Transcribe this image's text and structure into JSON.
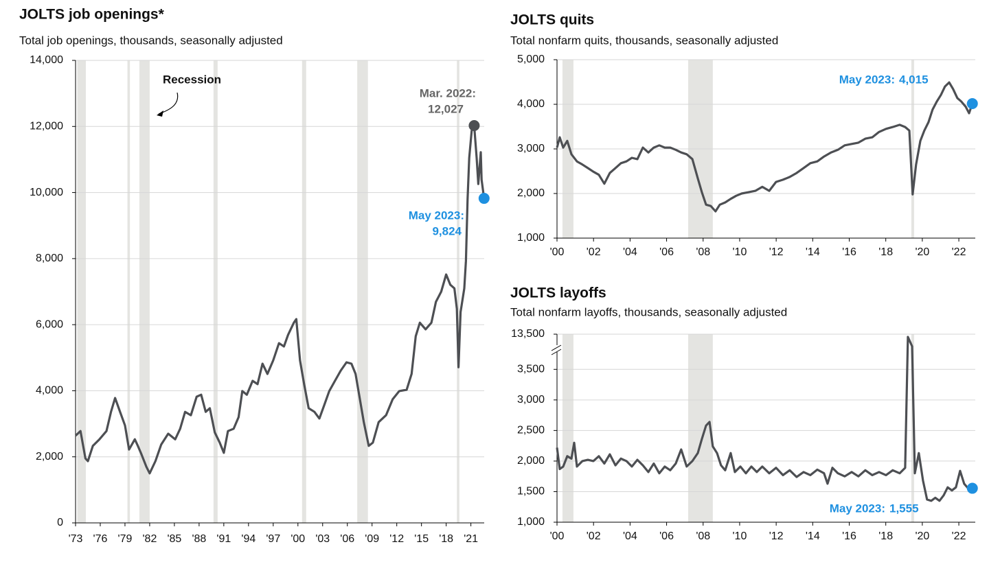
{
  "chart_data": [
    {
      "type": "line",
      "title": "JOLTS job openings*",
      "subtitle": "Total job openings, thousands, seasonally adjusted",
      "color": "#4d4f53",
      "grid": true,
      "recession_color": "#e4e4e1",
      "recession_label": "Recession",
      "x": [
        1973,
        1973.6,
        1974.2,
        1974.5,
        1975.1,
        1975.9,
        1976.75,
        1977.3,
        1977.8,
        1978.4,
        1979,
        1979.5,
        1980.2,
        1980.5,
        1981,
        1981.6,
        1982,
        1982.7,
        1983.4,
        1984.25,
        1985.1,
        1985.7,
        1986.3,
        1987,
        1987.7,
        1988.25,
        1988.8,
        1989.3,
        1989.9,
        1990.5,
        1991,
        1991.5,
        1992.2,
        1992.8,
        1993.25,
        1993.8,
        1994.5,
        1995.1,
        1995.7,
        1996.3,
        1997,
        1997.7,
        1998.3,
        1998.8,
        1999.5,
        1999.8,
        2000.25,
        2000.75,
        2001.3,
        2002,
        2002.6,
        2003.2,
        2003.8,
        2004.5,
        2005.2,
        2005.9,
        2006.5,
        2007,
        2007.5,
        2008,
        2008.6,
        2009.1,
        2009.8,
        2010.7,
        2011.5,
        2012.3,
        2013.2,
        2013.8,
        2014.3,
        2014.8,
        2015.5,
        2016.2,
        2016.75,
        2017.4,
        2018,
        2018.5,
        2019,
        2019.3,
        2019.5,
        2019.75,
        2020.2,
        2020.4,
        2020.6,
        2020.8,
        2021.1,
        2021.4,
        2021.7,
        2021.9,
        2022.2,
        2022.3,
        2022.6
      ],
      "values": [
        2640,
        2780,
        1950,
        1870,
        2330,
        2530,
        2780,
        3360,
        3780,
        3360,
        2950,
        2220,
        2530,
        2370,
        2080,
        1700,
        1500,
        1870,
        2370,
        2700,
        2530,
        2850,
        3360,
        3260,
        3820,
        3880,
        3360,
        3470,
        2740,
        2430,
        2120,
        2780,
        2850,
        3200,
        3990,
        3880,
        4300,
        4200,
        4820,
        4510,
        4920,
        5440,
        5340,
        5690,
        6060,
        6170,
        4920,
        4200,
        3470,
        3360,
        3160,
        3570,
        3990,
        4300,
        4610,
        4860,
        4820,
        4510,
        3780,
        3050,
        2330,
        2430,
        3050,
        3260,
        3740,
        3990,
        4030,
        4510,
        5650,
        6060,
        5860,
        6060,
        6690,
        7000,
        7520,
        7210,
        7100,
        6480,
        4710,
        6380,
        7100,
        7930,
        9800,
        11050,
        11880,
        12027,
        11050,
        10260,
        11220,
        10390,
        9824
      ],
      "xlim": [
        1973,
        2023.2
      ],
      "ylim": [
        0,
        14000
      ],
      "xticks": [
        {
          "value": 1973,
          "label": "'73"
        },
        {
          "value": 1976,
          "label": "'76"
        },
        {
          "value": 1979,
          "label": "'79"
        },
        {
          "value": 1982,
          "label": "'82"
        },
        {
          "value": 1985,
          "label": "'85"
        },
        {
          "value": 1988,
          "label": "'88"
        },
        {
          "value": 1991,
          "label": "'91"
        },
        {
          "value": 1994,
          "label": "'94"
        },
        {
          "value": 1997,
          "label": "'97"
        },
        {
          "value": 2000,
          "label": "'00"
        },
        {
          "value": 2003,
          "label": "'03"
        },
        {
          "value": 2006,
          "label": "'06"
        },
        {
          "value": 2009,
          "label": "'09"
        },
        {
          "value": 2012,
          "label": "'12"
        },
        {
          "value": 2015,
          "label": "'15"
        },
        {
          "value": 2018,
          "label": "'18"
        },
        {
          "value": 2021,
          "label": "'21"
        }
      ],
      "yticks": [
        0,
        {
          "value": 2000,
          "label": "2,000"
        },
        {
          "value": 4000,
          "label": "4,000"
        },
        {
          "value": 6000,
          "label": "6,000"
        },
        {
          "value": 8000,
          "label": "8,000"
        },
        {
          "value": 10000,
          "label": "10,000"
        },
        {
          "value": 12000,
          "label": "12,000"
        },
        {
          "value": 14000,
          "label": "14,000"
        }
      ],
      "recessions": [
        [
          1973.2,
          1974.25
        ],
        [
          1979.3,
          1979.6
        ],
        [
          1980.75,
          1982
        ],
        [
          1989.75,
          1990.25
        ],
        [
          2000.5,
          2001
        ],
        [
          2007.2,
          2008.5
        ],
        [
          2019.3,
          2019.6
        ]
      ],
      "annotations": [
        {
          "label": "Mar. 2022:",
          "value_label": "12,027",
          "x": 2021.4,
          "value": 12027,
          "color": "#4d4f53",
          "text_color": "#666666"
        },
        {
          "label": "May 2023:",
          "value_label": "9,824",
          "x": 2022.6,
          "value": 9824,
          "color": "#1e90e0",
          "text_color": "#1e90e0"
        }
      ]
    },
    {
      "type": "line",
      "title": "JOLTS quits",
      "subtitle": "Total nonfarm quits, thousands, seasonally adjusted",
      "color": "#4d4f53",
      "grid": true,
      "recession_color": "#e4e4e1",
      "x": [
        2000.0,
        2000.15,
        2000.34,
        2000.56,
        2000.79,
        2001.09,
        2001.39,
        2001.69,
        2001.99,
        2002.29,
        2002.59,
        2002.89,
        2003.2,
        2003.5,
        2003.8,
        2004.1,
        2004.4,
        2004.7,
        2005.0,
        2005.3,
        2005.6,
        2005.9,
        2006.2,
        2006.5,
        2006.8,
        2007.1,
        2007.41,
        2007.71,
        2007.93,
        2008.16,
        2008.42,
        2008.68,
        2008.91,
        2009.21,
        2009.51,
        2009.81,
        2010.11,
        2010.49,
        2010.86,
        2011.24,
        2011.62,
        2011.99,
        2012.37,
        2012.74,
        2013.12,
        2013.5,
        2013.87,
        2014.25,
        2014.62,
        2015.0,
        2015.38,
        2015.75,
        2016.13,
        2016.5,
        2016.88,
        2017.26,
        2017.63,
        2018.01,
        2018.38,
        2018.76,
        2019.06,
        2019.29,
        2019.47,
        2019.66,
        2019.89,
        2020.11,
        2020.34,
        2020.56,
        2020.79,
        2021.02,
        2021.24,
        2021.47,
        2021.69,
        2021.92,
        2022.14,
        2022.37,
        2022.56,
        2022.74
      ],
      "values": [
        3030,
        3260,
        3030,
        3180,
        2880,
        2720,
        2650,
        2570,
        2490,
        2420,
        2220,
        2460,
        2570,
        2680,
        2720,
        2800,
        2770,
        3030,
        2920,
        3030,
        3080,
        3030,
        3030,
        2980,
        2920,
        2880,
        2770,
        2340,
        2030,
        1750,
        1720,
        1600,
        1750,
        1800,
        1880,
        1950,
        2000,
        2030,
        2060,
        2150,
        2060,
        2260,
        2310,
        2370,
        2460,
        2570,
        2680,
        2720,
        2830,
        2920,
        2980,
        3080,
        3110,
        3140,
        3230,
        3260,
        3380,
        3450,
        3490,
        3540,
        3490,
        3410,
        1980,
        2650,
        3180,
        3410,
        3600,
        3880,
        4060,
        4210,
        4400,
        4490,
        4340,
        4140,
        4060,
        3950,
        3800,
        4015
      ],
      "xlim": [
        2000,
        2022.9
      ],
      "ylim": [
        1000,
        5000
      ],
      "xticks": [
        {
          "value": 2000,
          "label": "'00"
        },
        {
          "value": 2002,
          "label": "'02"
        },
        {
          "value": 2004,
          "label": "'04"
        },
        {
          "value": 2006,
          "label": "'06"
        },
        {
          "value": 2008,
          "label": "'08"
        },
        {
          "value": 2010,
          "label": "'10"
        },
        {
          "value": 2012,
          "label": "'12"
        },
        {
          "value": 2014,
          "label": "'14"
        },
        {
          "value": 2016,
          "label": "'16"
        },
        {
          "value": 2018,
          "label": "'18"
        },
        {
          "value": 2020,
          "label": "'20"
        },
        {
          "value": 2022,
          "label": "'22"
        }
      ],
      "yticks": [
        {
          "value": 1000,
          "label": "1,000"
        },
        {
          "value": 2000,
          "label": "2,000"
        },
        {
          "value": 3000,
          "label": "3,000"
        },
        {
          "value": 4000,
          "label": "4,000"
        },
        {
          "value": 5000,
          "label": "5,000"
        }
      ],
      "recessions": [
        [
          2000.3,
          2000.9
        ],
        [
          2007.18,
          2008.53
        ],
        [
          2019.4,
          2019.55
        ]
      ],
      "annotations": [
        {
          "label": "May 2023:",
          "value_label": "4,015",
          "x": 2022.74,
          "value": 4015,
          "color": "#1e90e0",
          "text_color": "#1e90e0"
        }
      ]
    },
    {
      "type": "line",
      "title": "JOLTS layoffs",
      "subtitle": "Total nonfarm layoffs, thousands, seasonally adjusted",
      "color": "#4d4f53",
      "grid": true,
      "recession_color": "#e4e4e1",
      "axis_break": [
        3750,
        13000
      ],
      "x": [
        2000.0,
        2000.15,
        2000.34,
        2000.56,
        2000.79,
        2000.94,
        2001.09,
        2001.39,
        2001.69,
        2001.99,
        2002.29,
        2002.59,
        2002.89,
        2003.2,
        2003.5,
        2003.8,
        2004.1,
        2004.4,
        2004.7,
        2005.0,
        2005.3,
        2005.6,
        2005.9,
        2006.2,
        2006.5,
        2006.8,
        2007.1,
        2007.41,
        2007.71,
        2007.93,
        2008.16,
        2008.35,
        2008.53,
        2008.76,
        2008.98,
        2009.21,
        2009.51,
        2009.74,
        2010.04,
        2010.34,
        2010.64,
        2010.94,
        2011.24,
        2011.62,
        2011.99,
        2012.37,
        2012.74,
        2013.12,
        2013.5,
        2013.87,
        2014.25,
        2014.62,
        2014.81,
        2015.08,
        2015.38,
        2015.75,
        2016.13,
        2016.5,
        2016.88,
        2017.26,
        2017.63,
        2018.01,
        2018.38,
        2018.76,
        2019.06,
        2019.21,
        2019.44,
        2019.59,
        2019.81,
        2020.04,
        2020.26,
        2020.49,
        2020.71,
        2020.94,
        2021.17,
        2021.39,
        2021.62,
        2021.84,
        2022.07,
        2022.29,
        2022.52,
        2022.74
      ],
      "values": [
        2220,
        1870,
        1910,
        2080,
        2040,
        2300,
        1910,
        2000,
        2020,
        2000,
        2080,
        1960,
        2110,
        1930,
        2040,
        2000,
        1910,
        2020,
        1930,
        1820,
        1960,
        1800,
        1910,
        1850,
        1960,
        2190,
        1910,
        2000,
        2130,
        2360,
        2580,
        2640,
        2240,
        2130,
        1930,
        1850,
        2130,
        1820,
        1910,
        1800,
        1910,
        1820,
        1910,
        1800,
        1890,
        1770,
        1850,
        1740,
        1820,
        1770,
        1860,
        1800,
        1630,
        1890,
        1800,
        1750,
        1820,
        1750,
        1850,
        1770,
        1820,
        1770,
        1850,
        1800,
        1890,
        13300,
        9300,
        1800,
        2130,
        1680,
        1370,
        1350,
        1400,
        1350,
        1440,
        1570,
        1520,
        1570,
        1840,
        1630,
        1550,
        1555
      ],
      "xlim": [
        2000,
        2022.9
      ],
      "ylim": [
        1000,
        13500
      ],
      "xticks": [
        {
          "value": 2000,
          "label": "'00"
        },
        {
          "value": 2002,
          "label": "'02"
        },
        {
          "value": 2004,
          "label": "'04"
        },
        {
          "value": 2006,
          "label": "'06"
        },
        {
          "value": 2008,
          "label": "'08"
        },
        {
          "value": 2010,
          "label": "'10"
        },
        {
          "value": 2012,
          "label": "'12"
        },
        {
          "value": 2014,
          "label": "'14"
        },
        {
          "value": 2016,
          "label": "'16"
        },
        {
          "value": 2018,
          "label": "'18"
        },
        {
          "value": 2020,
          "label": "'20"
        },
        {
          "value": 2022,
          "label": "'22"
        }
      ],
      "yticks": [
        {
          "value": 1000,
          "label": "1,000"
        },
        {
          "value": 1500,
          "label": "1,500"
        },
        {
          "value": 2000,
          "label": "2,000"
        },
        {
          "value": 2500,
          "label": "2,500"
        },
        {
          "value": 3000,
          "label": "3,000"
        },
        {
          "value": 3500,
          "label": "3,500"
        },
        {
          "value": 13500,
          "label": "13,500"
        }
      ],
      "recessions": [
        [
          2000.3,
          2000.9
        ],
        [
          2007.18,
          2008.53
        ],
        [
          2019.4,
          2019.55
        ]
      ],
      "annotations": [
        {
          "label": "May 2023:",
          "value_label": "1,555",
          "x": 2022.74,
          "value": 1555,
          "color": "#1e90e0",
          "text_color": "#1e90e0"
        }
      ]
    }
  ]
}
